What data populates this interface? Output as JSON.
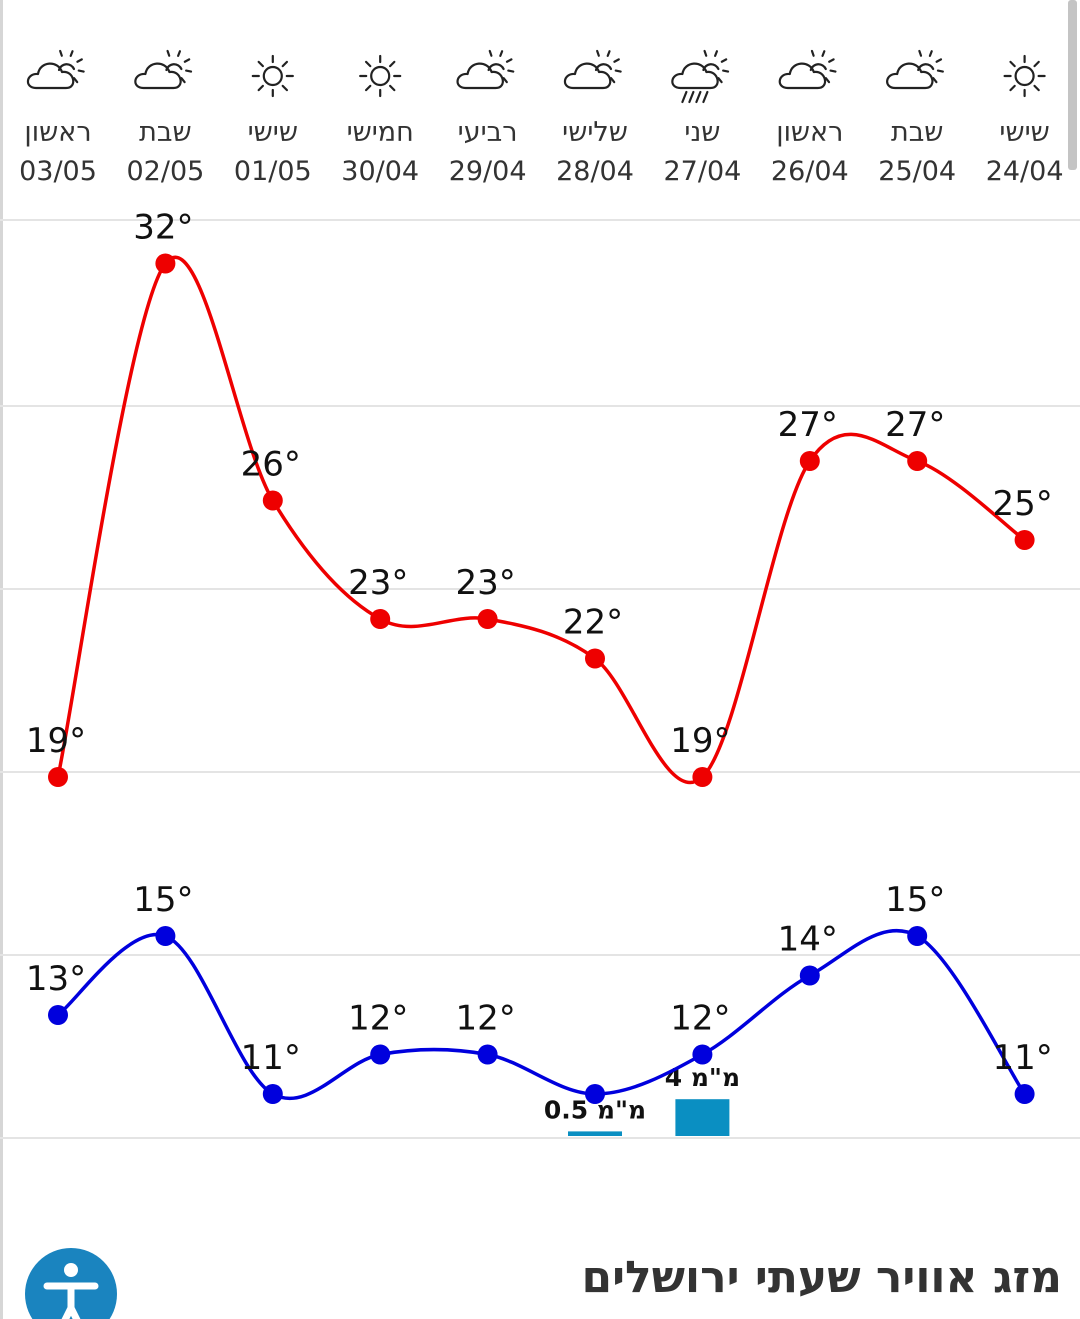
{
  "page_title": "מזג אוויר שעתי ירושלים",
  "accessibility_icon": "accessibility-person-icon",
  "colors": {
    "max_series": "#ee0000",
    "min_series": "#0000dd",
    "rain_bar": "#0a8fc2",
    "accessibility_button": "#1a84bf"
  },
  "chart_data": {
    "type": "line",
    "x": [
      "03/05",
      "02/05",
      "01/05",
      "30/04",
      "29/04",
      "28/04",
      "27/04",
      "26/04",
      "25/04",
      "24/04"
    ],
    "day_names": [
      "ראשון",
      "שבת",
      "שישי",
      "חמישי",
      "רביעי",
      "שלישי",
      "שני",
      "ראשון",
      "שבת",
      "שישי"
    ],
    "icons": [
      "partly-cloudy-icon",
      "partly-cloudy-icon",
      "sun-icon",
      "sun-icon",
      "partly-cloudy-icon",
      "partly-cloudy-icon",
      "rain-cloud-icon",
      "partly-cloudy-icon",
      "partly-cloudy-icon",
      "sun-icon"
    ],
    "series": [
      {
        "values": [
          19,
          32,
          26,
          23,
          23,
          22,
          19,
          27,
          27,
          25
        ],
        "labels": [
          "19°",
          "32°",
          "26°",
          "23°",
          "23°",
          "22°",
          "19°",
          "27°",
          "27°",
          "25°"
        ]
      },
      {
        "values": [
          13,
          15,
          11,
          12,
          12,
          11,
          12,
          14,
          15,
          11
        ],
        "labels": [
          "13°",
          "15°",
          "11°",
          "12°",
          "12°",
          "",
          "12°",
          "14°",
          "15°",
          "11°"
        ]
      }
    ],
    "rain": [
      {
        "index": 5,
        "value": 0.5,
        "label": "0.5 מ\"מ"
      },
      {
        "index": 6,
        "value": 4,
        "label": "4 מ\"מ"
      }
    ],
    "grid": true
  }
}
